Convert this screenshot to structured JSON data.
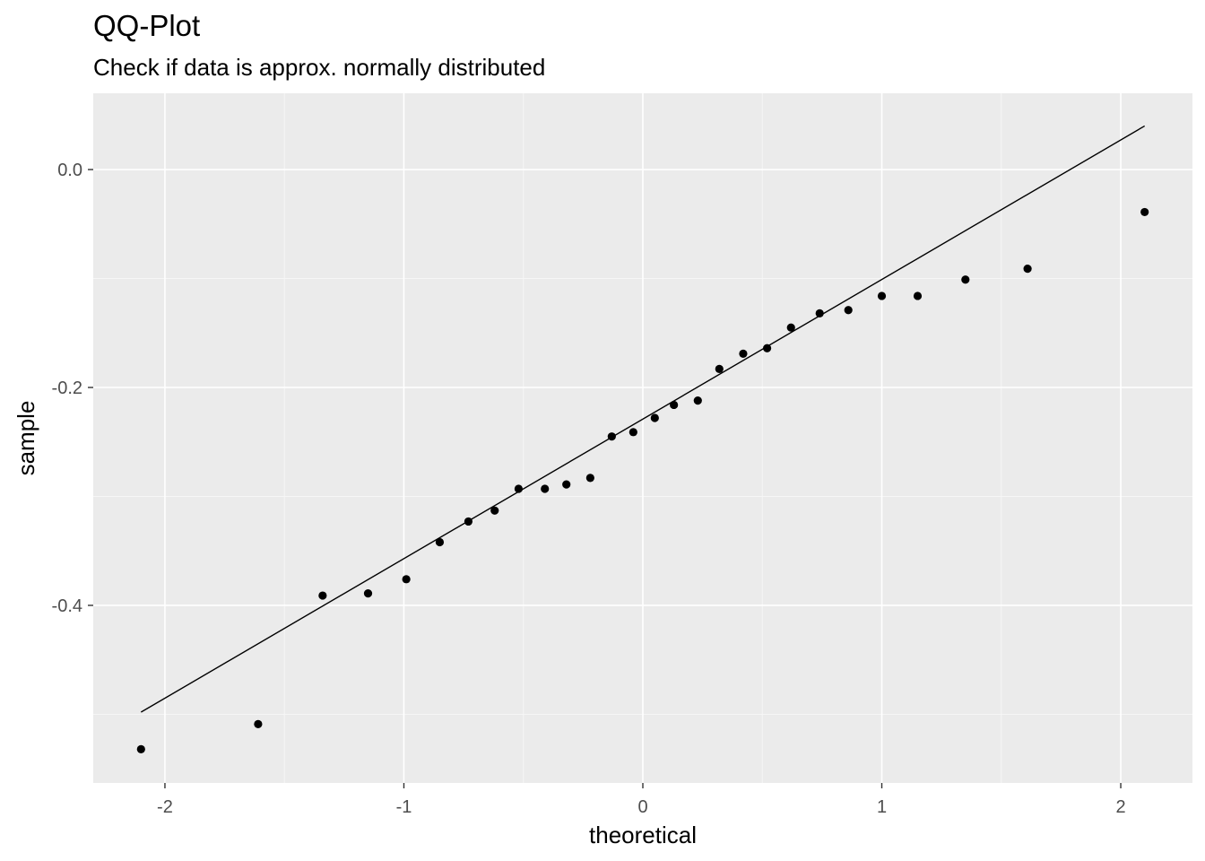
{
  "chart_data": {
    "type": "scatter",
    "title": "QQ-Plot",
    "subtitle": "Check if data is approx. normally distributed",
    "xlabel": "theoretical",
    "ylabel": "sample",
    "xlim": [
      -2.3,
      2.3
    ],
    "ylim": [
      -0.563,
      0.07
    ],
    "x_ticks": [
      -2,
      -1,
      0,
      1,
      2
    ],
    "x_tick_labels": [
      "-2",
      "-1",
      "0",
      "1",
      "2"
    ],
    "y_ticks": [
      0.0,
      -0.2,
      -0.4
    ],
    "y_tick_labels": [
      "0.0",
      "-0.2",
      "-0.4"
    ],
    "grid": true,
    "background": "#ebebeb",
    "point_color": "#000000",
    "points": [
      {
        "x": -2.1,
        "y": -0.532
      },
      {
        "x": -1.61,
        "y": -0.509
      },
      {
        "x": -1.34,
        "y": -0.391
      },
      {
        "x": -1.15,
        "y": -0.389
      },
      {
        "x": -0.99,
        "y": -0.376
      },
      {
        "x": -0.85,
        "y": -0.342
      },
      {
        "x": -0.73,
        "y": -0.323
      },
      {
        "x": -0.62,
        "y": -0.313
      },
      {
        "x": -0.52,
        "y": -0.293
      },
      {
        "x": -0.41,
        "y": -0.293
      },
      {
        "x": -0.32,
        "y": -0.289
      },
      {
        "x": -0.22,
        "y": -0.283
      },
      {
        "x": -0.13,
        "y": -0.245
      },
      {
        "x": -0.04,
        "y": -0.241
      },
      {
        "x": 0.05,
        "y": -0.228
      },
      {
        "x": 0.13,
        "y": -0.216
      },
      {
        "x": 0.23,
        "y": -0.212
      },
      {
        "x": 0.32,
        "y": -0.183
      },
      {
        "x": 0.42,
        "y": -0.169
      },
      {
        "x": 0.52,
        "y": -0.164
      },
      {
        "x": 0.62,
        "y": -0.145
      },
      {
        "x": 0.74,
        "y": -0.132
      },
      {
        "x": 0.86,
        "y": -0.129
      },
      {
        "x": 1.0,
        "y": -0.116
      },
      {
        "x": 1.15,
        "y": -0.116
      },
      {
        "x": 1.35,
        "y": -0.101
      },
      {
        "x": 1.61,
        "y": -0.091
      },
      {
        "x": 2.1,
        "y": -0.039
      }
    ],
    "reference_line": {
      "x": [
        -2.1,
        2.1
      ],
      "y": [
        -0.498,
        0.04
      ]
    }
  }
}
